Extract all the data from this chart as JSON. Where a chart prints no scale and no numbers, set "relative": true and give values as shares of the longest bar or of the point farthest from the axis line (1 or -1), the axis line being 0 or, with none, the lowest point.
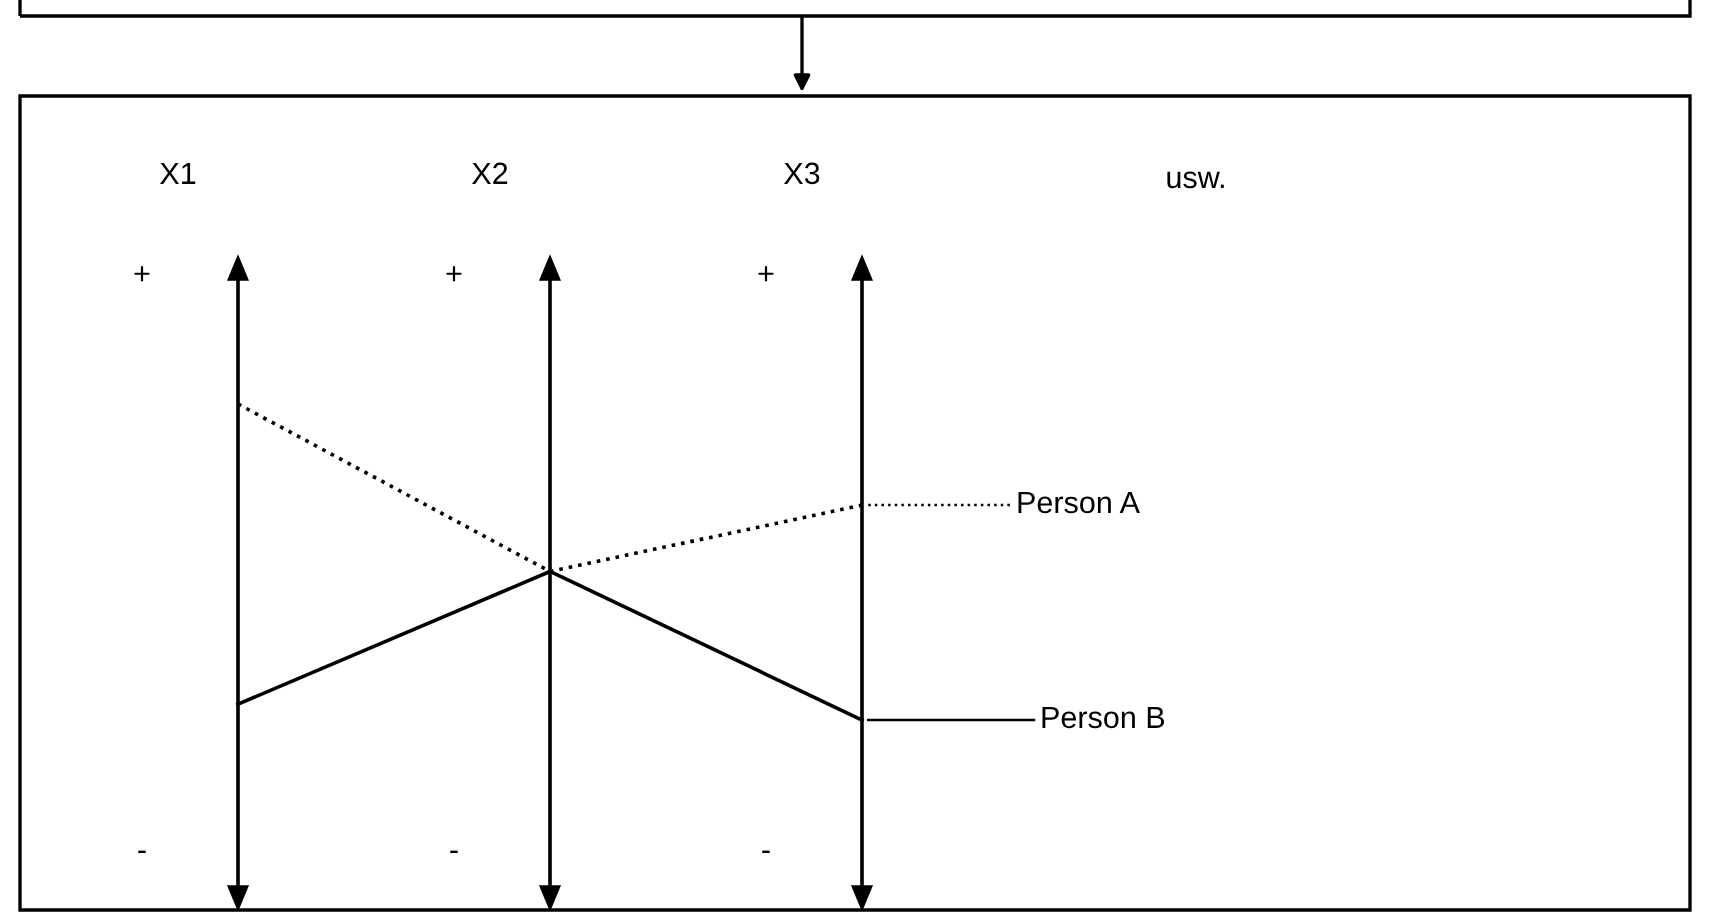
{
  "chart_data": {
    "type": "line",
    "relative": true,
    "categories": [
      "X1",
      "X2",
      "X3"
    ],
    "series": [
      {
        "name": "Person A",
        "color": "#000000",
        "line_style": "dotted",
        "values": [
          1,
          0.47,
          0.68
        ]
      },
      {
        "name": "Person B",
        "color": "#000000",
        "line_style": "solid",
        "values": [
          0.05,
          0.47,
          0
        ]
      }
    ],
    "annotations": [
      "+",
      "+",
      "+",
      "-",
      "-",
      "-",
      "usw."
    ],
    "legend": "right",
    "marker": "none"
  }
}
